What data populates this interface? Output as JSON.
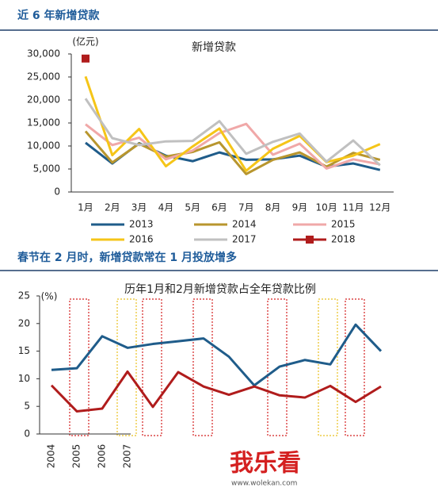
{
  "chart_data": [
    {
      "type": "line",
      "heading": "近 6 年新增贷款",
      "title": "新增贷款",
      "unit": "(亿元)",
      "categories": [
        "1月",
        "2月",
        "3月",
        "4月",
        "5月",
        "6月",
        "7月",
        "8月",
        "9月",
        "10月",
        "11月",
        "12月"
      ],
      "ylim": [
        0,
        30000
      ],
      "yticks": [
        0,
        {
          "value": 5000,
          "label": "5,000"
        },
        {
          "value": 10000,
          "label": "10,000"
        },
        {
          "value": 15000,
          "label": "15,000"
        },
        {
          "value": 20000,
          "label": "20,000"
        },
        {
          "value": 25000,
          "label": "25,000"
        },
        {
          "value": 30000,
          "label": "30,000"
        }
      ],
      "series": [
        {
          "name": "2013",
          "color": "#1f5c8a",
          "values": [
            10700,
            6200,
            10600,
            7900,
            6700,
            8600,
            7000,
            7100,
            7900,
            5500,
            6200,
            4800
          ]
        },
        {
          "name": "2014",
          "color": "#b8962e",
          "values": [
            13200,
            6400,
            10500,
            7700,
            8700,
            10800,
            3900,
            7000,
            8600,
            5500,
            8500,
            7000
          ]
        },
        {
          "name": "2015",
          "color": "#f0a8a8",
          "values": [
            14700,
            10200,
            11800,
            7100,
            9000,
            12800,
            14800,
            8100,
            10500,
            5100,
            7100,
            6000
          ]
        },
        {
          "name": "2016",
          "color": "#f5c518",
          "values": [
            25100,
            8000,
            13700,
            5600,
            9900,
            13800,
            4600,
            9400,
            12200,
            6500,
            7900,
            10400
          ]
        },
        {
          "name": "2017",
          "color": "#c0c0c0",
          "values": [
            20300,
            11700,
            10200,
            11000,
            11100,
            15400,
            8300,
            10900,
            12700,
            6600,
            11200,
            5800
          ]
        },
        {
          "name": "2018",
          "color": "#b01c1c",
          "marker": "square",
          "values": [
            29000,
            null,
            null,
            null,
            null,
            null,
            null,
            null,
            null,
            null,
            null,
            null
          ]
        }
      ]
    },
    {
      "type": "line",
      "heading": "春节在 2 月时，新增贷款常在 1 月投放增多",
      "title": "历年1月和2月新增贷款占全年贷款比例",
      "unit": "(%)",
      "categories": [
        "2004",
        "2005",
        "2006",
        "2007",
        null,
        null,
        null,
        null,
        null,
        null,
        null,
        null,
        null,
        null
      ],
      "ylim": [
        0,
        25
      ],
      "yticks": [
        0,
        5,
        10,
        15,
        20,
        25
      ],
      "series": [
        {
          "color": "#1f5c8a",
          "values": [
            11.6,
            11.9,
            17.7,
            15.6,
            16.3,
            16.8,
            17.3,
            14.0,
            8.8,
            12.2,
            13.4,
            12.6,
            19.8,
            15.0
          ]
        },
        {
          "color": "#b01c1c",
          "values": [
            8.8,
            4.1,
            4.6,
            11.3,
            4.9,
            11.2,
            8.6,
            7.1,
            8.6,
            7.0,
            6.6,
            8.7,
            5.8,
            8.6
          ]
        }
      ]
    }
  ],
  "watermark": {
    "text": "我乐看",
    "url": "www.wolekan.com"
  }
}
